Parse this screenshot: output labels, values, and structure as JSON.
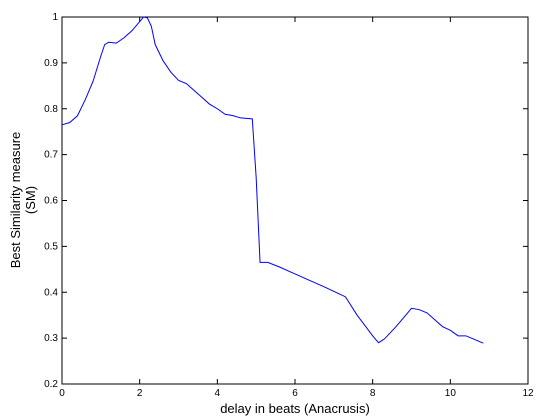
{
  "chart_data": {
    "type": "line",
    "xlabel": "delay in beats (Anacrusis)",
    "ylabel": [
      "Best Similarity measure",
      "(SM)"
    ],
    "xlim": [
      0,
      12
    ],
    "xticks": [
      0,
      2,
      4,
      6,
      8,
      10,
      12
    ],
    "ylim": [
      0.2,
      1
    ],
    "yticks": [
      0.2,
      0.3,
      0.4,
      0.5,
      0.6,
      0.7,
      0.8,
      0.9,
      1
    ],
    "series": [
      {
        "color": "#0000ff",
        "x": [
          0,
          0.2,
          0.4,
          0.6,
          0.8,
          1.0,
          1.1,
          1.2,
          1.4,
          1.6,
          1.8,
          2.0,
          2.1,
          2.2,
          2.3,
          2.4,
          2.6,
          2.8,
          3.0,
          3.2,
          3.4,
          3.6,
          3.8,
          4.0,
          4.2,
          4.4,
          4.6,
          4.9,
          5.0,
          5.1,
          5.3,
          5.6,
          6.0,
          6.4,
          6.8,
          7.1,
          7.3,
          7.6,
          8.0,
          8.15,
          8.3,
          8.6,
          8.9,
          9.0,
          9.2,
          9.4,
          9.6,
          9.8,
          10.0,
          10.2,
          10.4,
          10.6,
          10.85
        ],
        "values": [
          0.765,
          0.77,
          0.785,
          0.82,
          0.86,
          0.915,
          0.94,
          0.945,
          0.943,
          0.955,
          0.97,
          0.99,
          1.0,
          0.998,
          0.98,
          0.94,
          0.905,
          0.88,
          0.862,
          0.855,
          0.84,
          0.825,
          0.81,
          0.8,
          0.788,
          0.785,
          0.78,
          0.778,
          0.65,
          0.465,
          0.465,
          0.455,
          0.44,
          0.425,
          0.41,
          0.398,
          0.39,
          0.35,
          0.305,
          0.29,
          0.298,
          0.325,
          0.355,
          0.365,
          0.362,
          0.355,
          0.34,
          0.325,
          0.317,
          0.305,
          0.305,
          0.298,
          0.289
        ]
      }
    ]
  }
}
